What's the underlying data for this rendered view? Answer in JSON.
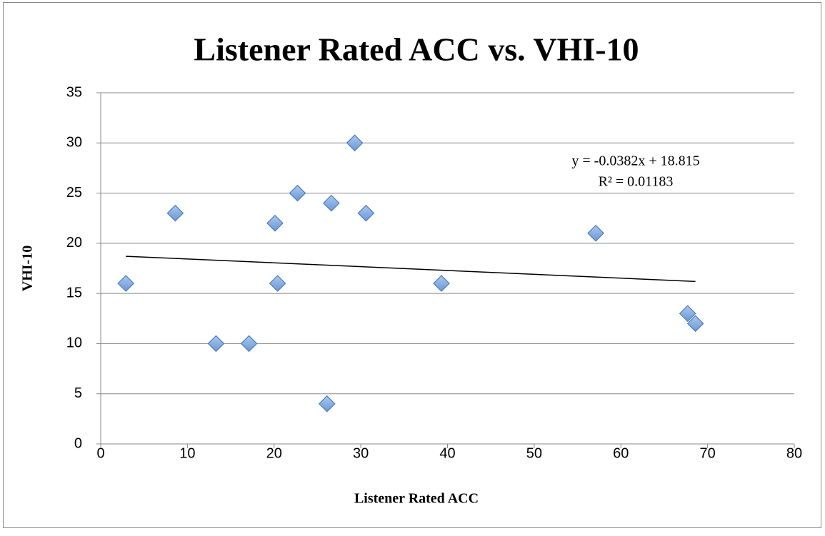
{
  "chart_data": {
    "type": "scatter",
    "title": "Listener Rated ACC vs. VHI-10",
    "xlabel": "Listener Rated ACC",
    "ylabel": "VHI-10",
    "x": [
      2.9,
      8.6,
      13.3,
      17.1,
      20.1,
      20.4,
      22.7,
      26.1,
      26.6,
      29.3,
      30.6,
      39.3,
      57.1,
      67.7,
      68.6
    ],
    "values": [
      16,
      23,
      10,
      10,
      22,
      16,
      25,
      4,
      24,
      30,
      23,
      16,
      21,
      13,
      12
    ],
    "color": "#7aa6e0",
    "xlim": [
      0,
      80
    ],
    "xticks": [
      0,
      10,
      20,
      30,
      40,
      50,
      60,
      70,
      80
    ],
    "ylim": [
      0,
      35
    ],
    "yticks": [
      0,
      5,
      10,
      15,
      20,
      25,
      30,
      35
    ],
    "grid": true,
    "trendline": {
      "slope": -0.0382,
      "intercept": 18.815,
      "equation": "y = -0.0382x + 18.815",
      "r_squared": "R² = 0.01183"
    }
  }
}
